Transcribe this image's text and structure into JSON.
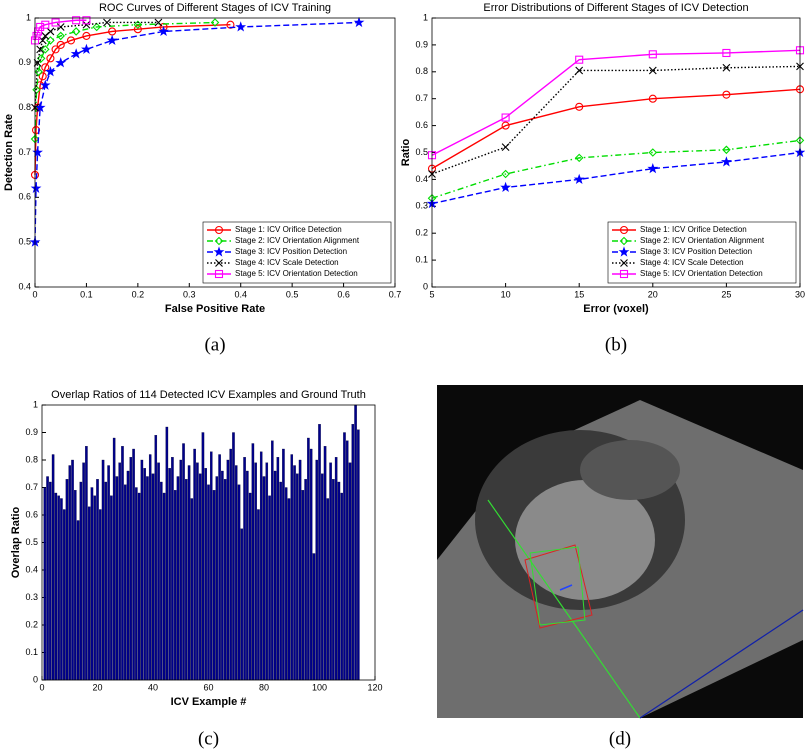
{
  "chart_data": [
    {
      "type": "line",
      "title": "ROC Curves of Different Stages of ICV Training",
      "x_label": "False Positive Rate",
      "y_label": "Detection Rate",
      "caption": "(a)",
      "xlim": [
        0,
        0.7
      ],
      "xticks": [
        0,
        0.1,
        0.2,
        0.3,
        0.4,
        0.5,
        0.6,
        0.7
      ],
      "ylim": [
        0.4,
        1
      ],
      "yticks": [
        0.4,
        0.5,
        0.6,
        0.7,
        0.8,
        0.9,
        1
      ],
      "legend": "lower right",
      "series": [
        {
          "name": "Stage 1: ICV Orifice Detection",
          "color": "#ff0000",
          "marker": "circle",
          "linestyle": "solid",
          "x": [
            0,
            0.002,
            0.005,
            0.01,
            0.015,
            0.02,
            0.03,
            0.04,
            0.05,
            0.07,
            0.1,
            0.15,
            0.2,
            0.25,
            0.38
          ],
          "values": [
            0.65,
            0.75,
            0.8,
            0.85,
            0.87,
            0.89,
            0.91,
            0.93,
            0.94,
            0.95,
            0.96,
            0.97,
            0.975,
            0.98,
            0.985
          ]
        },
        {
          "name": "Stage 2: ICV Orientation Alignment",
          "color": "#00dd00",
          "marker": "diamond",
          "linestyle": "dashdot",
          "x": [
            0,
            0.003,
            0.007,
            0.012,
            0.02,
            0.03,
            0.05,
            0.08,
            0.12,
            0.2,
            0.35
          ],
          "values": [
            0.73,
            0.84,
            0.88,
            0.91,
            0.93,
            0.95,
            0.96,
            0.97,
            0.98,
            0.985,
            0.99
          ]
        },
        {
          "name": "Stage 3: ICV Position Detection",
          "color": "#0000ff",
          "marker": "star",
          "linestyle": "dashed",
          "x": [
            0,
            0.002,
            0.005,
            0.01,
            0.02,
            0.03,
            0.05,
            0.08,
            0.1,
            0.15,
            0.25,
            0.4,
            0.63
          ],
          "values": [
            0.5,
            0.62,
            0.7,
            0.8,
            0.85,
            0.88,
            0.9,
            0.92,
            0.93,
            0.95,
            0.97,
            0.98,
            0.99
          ]
        },
        {
          "name": "Stage 4: ICV Scale Detection",
          "color": "#000000",
          "marker": "x",
          "linestyle": "dotted",
          "x": [
            0,
            0.005,
            0.01,
            0.015,
            0.02,
            0.03,
            0.05,
            0.1,
            0.14,
            0.24
          ],
          "values": [
            0.8,
            0.9,
            0.93,
            0.95,
            0.96,
            0.97,
            0.98,
            0.985,
            0.99,
            0.99
          ]
        },
        {
          "name": "Stage 5: ICV Orientation Detection",
          "color": "#ff00ff",
          "marker": "square",
          "linestyle": "solid",
          "x": [
            0,
            0.003,
            0.006,
            0.01,
            0.02,
            0.04,
            0.08,
            0.1
          ],
          "values": [
            0.95,
            0.96,
            0.97,
            0.98,
            0.985,
            0.99,
            0.995,
            0.995
          ]
        }
      ]
    },
    {
      "type": "line",
      "title": "Error Distributions of Different Stages of ICV Detection",
      "x_label": "Error (voxel)",
      "y_label": "Ratio",
      "caption": "(b)",
      "x": [
        5,
        10,
        15,
        20,
        25,
        30
      ],
      "xlim": [
        5,
        30
      ],
      "xticks": [
        5,
        10,
        15,
        20,
        25,
        30
      ],
      "ylim": [
        0,
        1
      ],
      "yticks": [
        0,
        0.1,
        0.2,
        0.3,
        0.4,
        0.5,
        0.6,
        0.7,
        0.8,
        0.9,
        1
      ],
      "legend": "lower right",
      "series": [
        {
          "name": "Stage 1: ICV Orifice Detection",
          "color": "#ff0000",
          "marker": "circle",
          "linestyle": "solid",
          "values": [
            0.44,
            0.6,
            0.67,
            0.7,
            0.715,
            0.735
          ]
        },
        {
          "name": "Stage 2: ICV Orientation Alignment",
          "color": "#00dd00",
          "marker": "diamond",
          "linestyle": "dashdot",
          "values": [
            0.33,
            0.42,
            0.48,
            0.5,
            0.51,
            0.545
          ]
        },
        {
          "name": "Stage 3: ICV Position Detection",
          "color": "#0000ff",
          "marker": "star",
          "linestyle": "dashed",
          "values": [
            0.31,
            0.37,
            0.4,
            0.44,
            0.465,
            0.5
          ]
        },
        {
          "name": "Stage 4: ICV Scale Detection",
          "color": "#000000",
          "marker": "x",
          "linestyle": "dotted",
          "values": [
            0.42,
            0.52,
            0.805,
            0.805,
            0.815,
            0.82
          ]
        },
        {
          "name": "Stage 5: ICV Orientation Detection",
          "color": "#ff00ff",
          "marker": "square",
          "linestyle": "solid",
          "values": [
            0.49,
            0.63,
            0.845,
            0.865,
            0.87,
            0.88
          ]
        }
      ]
    },
    {
      "type": "bar",
      "title": "Overlap Ratios of 114 Detected ICV Examples and Ground Truth",
      "x_label": "ICV Example #",
      "y_label": "Overlap Ratio",
      "caption": "(c)",
      "xlim": [
        0,
        120
      ],
      "xticks": [
        0,
        20,
        40,
        60,
        80,
        100,
        120
      ],
      "ylim": [
        0,
        1
      ],
      "yticks": [
        0,
        0.1,
        0.2,
        0.3,
        0.4,
        0.5,
        0.6,
        0.7,
        0.8,
        0.9,
        1
      ],
      "color": "#00008b",
      "x": [
        1,
        2,
        3,
        4,
        5,
        6,
        7,
        8,
        9,
        10,
        11,
        12,
        13,
        14,
        15,
        16,
        17,
        18,
        19,
        20,
        21,
        22,
        23,
        24,
        25,
        26,
        27,
        28,
        29,
        30,
        31,
        32,
        33,
        34,
        35,
        36,
        37,
        38,
        39,
        40,
        41,
        42,
        43,
        44,
        45,
        46,
        47,
        48,
        49,
        50,
        51,
        52,
        53,
        54,
        55,
        56,
        57,
        58,
        59,
        60,
        61,
        62,
        63,
        64,
        65,
        66,
        67,
        68,
        69,
        70,
        71,
        72,
        73,
        74,
        75,
        76,
        77,
        78,
        79,
        80,
        81,
        82,
        83,
        84,
        85,
        86,
        87,
        88,
        89,
        90,
        91,
        92,
        93,
        94,
        95,
        96,
        97,
        98,
        99,
        100,
        101,
        102,
        103,
        104,
        105,
        106,
        107,
        108,
        109,
        110,
        111,
        112,
        113,
        114
      ],
      "values": [
        0.7,
        0.74,
        0.72,
        0.82,
        0.68,
        0.67,
        0.66,
        0.62,
        0.73,
        0.78,
        0.8,
        0.69,
        0.58,
        0.72,
        0.79,
        0.85,
        0.63,
        0.7,
        0.67,
        0.73,
        0.62,
        0.8,
        0.72,
        0.78,
        0.67,
        0.88,
        0.74,
        0.79,
        0.85,
        0.71,
        0.76,
        0.81,
        0.84,
        0.7,
        0.68,
        0.8,
        0.77,
        0.74,
        0.82,
        0.75,
        0.89,
        0.79,
        0.72,
        0.68,
        0.92,
        0.77,
        0.81,
        0.69,
        0.74,
        0.8,
        0.86,
        0.73,
        0.78,
        0.66,
        0.84,
        0.79,
        0.75,
        0.9,
        0.77,
        0.71,
        0.83,
        0.69,
        0.74,
        0.82,
        0.76,
        0.73,
        0.8,
        0.84,
        0.9,
        0.78,
        0.71,
        0.55,
        0.81,
        0.76,
        0.68,
        0.86,
        0.79,
        0.62,
        0.83,
        0.74,
        0.79,
        0.67,
        0.87,
        0.76,
        0.81,
        0.72,
        0.84,
        0.7,
        0.66,
        0.82,
        0.78,
        0.75,
        0.8,
        0.69,
        0.73,
        0.88,
        0.84,
        0.46,
        0.8,
        0.93,
        0.75,
        0.85,
        0.66,
        0.79,
        0.73,
        0.81,
        0.72,
        0.68,
        0.9,
        0.87,
        0.79,
        0.93,
        1.0,
        0.91
      ]
    }
  ],
  "image_panel": {
    "caption": "(d)"
  }
}
